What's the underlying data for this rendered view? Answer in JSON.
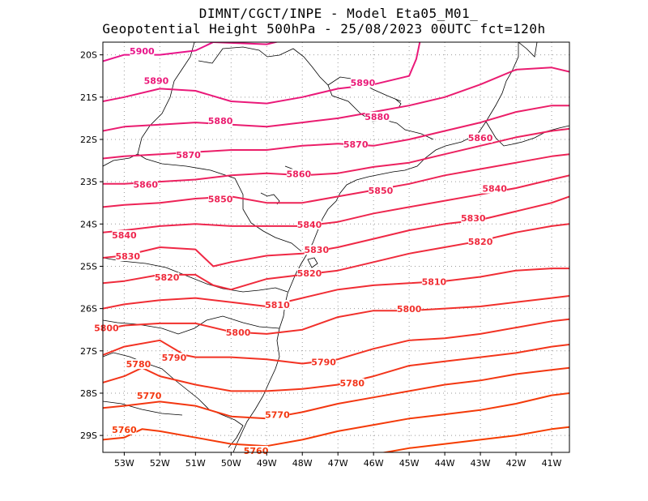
{
  "header": {
    "line1": "DIMNT/CGCT/INPE -  Model Eta05_M01_",
    "line2": "Geopotential Height 500hPa -  25/08/2023 00UTC fct=120h"
  },
  "map": {
    "lon_range": [
      -53.6,
      -40.5
    ],
    "lat_range": [
      -29.4,
      -19.7
    ],
    "lon_ticks": [
      {
        "value": -53,
        "label": "53W"
      },
      {
        "value": -52,
        "label": "52W"
      },
      {
        "value": -51,
        "label": "51W"
      },
      {
        "value": -50,
        "label": "50W"
      },
      {
        "value": -49,
        "label": "49W"
      },
      {
        "value": -48,
        "label": "48W"
      },
      {
        "value": -47,
        "label": "47W"
      },
      {
        "value": -46,
        "label": "46W"
      },
      {
        "value": -45,
        "label": "45W"
      },
      {
        "value": -44,
        "label": "44W"
      },
      {
        "value": -43,
        "label": "43W"
      },
      {
        "value": -42,
        "label": "42W"
      },
      {
        "value": -41,
        "label": "41W"
      }
    ],
    "lat_ticks": [
      {
        "value": -20,
        "label": "20S"
      },
      {
        "value": -21,
        "label": "21S"
      },
      {
        "value": -22,
        "label": "22S"
      },
      {
        "value": -23,
        "label": "23S"
      },
      {
        "value": -24,
        "label": "24S"
      },
      {
        "value": -25,
        "label": "25S"
      },
      {
        "value": -26,
        "label": "26S"
      },
      {
        "value": -27,
        "label": "27S"
      },
      {
        "value": -28,
        "label": "28S"
      },
      {
        "value": -29,
        "label": "29S"
      }
    ],
    "contours": [
      {
        "label": "5900",
        "color": "#e8148a",
        "points": [
          [
            -53.6,
            -20.15
          ],
          [
            -53,
            -20.0
          ],
          [
            -52,
            -20.0
          ],
          [
            -51,
            -19.9
          ],
          [
            -50.5,
            -19.7
          ]
        ],
        "labels": [
          [
            -52.5,
            -19.95
          ]
        ]
      },
      {
        "label": "5900",
        "color": "#e8148a",
        "points": [
          [
            -50.5,
            -19.7
          ],
          [
            -49,
            -19.75
          ],
          [
            -48.5,
            -19.65
          ]
        ],
        "labels": [
          [
            -48.3,
            -19.65
          ]
        ]
      },
      {
        "label": "5890",
        "color": "#e8148a",
        "points": [
          [
            -53.6,
            -21.1
          ],
          [
            -53,
            -21.0
          ],
          [
            -52,
            -20.8
          ],
          [
            -51,
            -20.85
          ],
          [
            -50,
            -21.1
          ],
          [
            -49,
            -21.15
          ],
          [
            -48,
            -21.0
          ],
          [
            -47,
            -20.8
          ],
          [
            -46,
            -20.7
          ],
          [
            -45,
            -20.5
          ],
          [
            -44.8,
            -20.1
          ],
          [
            -44.7,
            -19.7
          ]
        ],
        "labels": [
          [
            -52.1,
            -20.65
          ],
          [
            -46.3,
            -20.7
          ]
        ]
      },
      {
        "label": "5880",
        "color": "#e8148a",
        "points": [
          [
            -53.6,
            -21.8
          ],
          [
            -53,
            -21.7
          ],
          [
            -52,
            -21.65
          ],
          [
            -51,
            -21.6
          ],
          [
            -50,
            -21.65
          ],
          [
            -49,
            -21.7
          ],
          [
            -48,
            -21.6
          ],
          [
            -47,
            -21.5
          ],
          [
            -46,
            -21.35
          ],
          [
            -45,
            -21.2
          ],
          [
            -44,
            -21.0
          ],
          [
            -43,
            -20.7
          ],
          [
            -42,
            -20.35
          ],
          [
            -41,
            -20.3
          ],
          [
            -40.5,
            -20.4
          ]
        ],
        "labels": [
          [
            -50.3,
            -21.6
          ],
          [
            -45.9,
            -21.5
          ]
        ]
      },
      {
        "label": "5870",
        "color": "#e8148a",
        "points": [
          [
            -53.6,
            -22.45
          ],
          [
            -53,
            -22.4
          ],
          [
            -52,
            -22.35
          ],
          [
            -51,
            -22.3
          ],
          [
            -50,
            -22.25
          ],
          [
            -49,
            -22.25
          ],
          [
            -48,
            -22.15
          ],
          [
            -47,
            -22.1
          ],
          [
            -46,
            -22.15
          ],
          [
            -45,
            -22.0
          ],
          [
            -44,
            -21.8
          ],
          [
            -43,
            -21.6
          ],
          [
            -42,
            -21.35
          ],
          [
            -41,
            -21.2
          ],
          [
            -40.5,
            -21.2
          ]
        ],
        "labels": [
          [
            -51.2,
            -22.4
          ],
          [
            -46.5,
            -22.15
          ]
        ]
      },
      {
        "label": "5860",
        "color": "#e8148a",
        "points": [
          [
            -53.6,
            -23.05
          ],
          [
            -53,
            -23.05
          ],
          [
            -52,
            -23.0
          ],
          [
            -51,
            -22.95
          ],
          [
            -50,
            -22.85
          ],
          [
            -49,
            -22.8
          ],
          [
            -48,
            -22.85
          ],
          [
            -47,
            -22.8
          ],
          [
            -46,
            -22.65
          ],
          [
            -45,
            -22.55
          ],
          [
            -44,
            -22.35
          ],
          [
            -43,
            -22.15
          ],
          [
            -42,
            -21.95
          ],
          [
            -41,
            -21.8
          ],
          [
            -40.5,
            -21.75
          ]
        ],
        "labels": [
          [
            -52.4,
            -23.1
          ],
          [
            -48.1,
            -22.85
          ],
          [
            -43.0,
            -22.0
          ]
        ]
      },
      {
        "label": "5850",
        "color": "#e8148a",
        "points": [
          [
            -53.6,
            -23.6
          ],
          [
            -53,
            -23.55
          ],
          [
            -52,
            -23.5
          ],
          [
            -51,
            -23.4
          ],
          [
            -50,
            -23.35
          ],
          [
            -49,
            -23.5
          ],
          [
            -48,
            -23.5
          ],
          [
            -47,
            -23.35
          ],
          [
            -46,
            -23.2
          ],
          [
            -45,
            -23.05
          ],
          [
            -44,
            -22.85
          ],
          [
            -43,
            -22.7
          ],
          [
            -42,
            -22.55
          ],
          [
            -41,
            -22.4
          ],
          [
            -40.5,
            -22.35
          ]
        ],
        "labels": [
          [
            -50.3,
            -23.45
          ],
          [
            -45.8,
            -23.25
          ]
        ]
      },
      {
        "label": "5840",
        "color": "#e8148a",
        "points": [
          [
            -53.6,
            -24.2
          ],
          [
            -53,
            -24.15
          ],
          [
            -52,
            -24.05
          ],
          [
            -51,
            -24.0
          ],
          [
            -50,
            -24.05
          ],
          [
            -49,
            -24.05
          ],
          [
            -48,
            -24.05
          ],
          [
            -47,
            -23.95
          ],
          [
            -46,
            -23.75
          ],
          [
            -45,
            -23.6
          ],
          [
            -44,
            -23.45
          ],
          [
            -43,
            -23.3
          ],
          [
            -42,
            -23.15
          ],
          [
            -41,
            -22.95
          ],
          [
            -40.5,
            -22.85
          ]
        ],
        "labels": [
          [
            -53.0,
            -24.3
          ],
          [
            -47.8,
            -24.05
          ],
          [
            -42.6,
            -23.2
          ]
        ]
      },
      {
        "label": "5830",
        "color": "#e8148a",
        "points": [
          [
            -53.6,
            -24.8
          ],
          [
            -53,
            -24.75
          ],
          [
            -52,
            -24.55
          ],
          [
            -51,
            -24.6
          ],
          [
            -50.5,
            -25.0
          ],
          [
            -50,
            -24.9
          ],
          [
            -49,
            -24.75
          ],
          [
            -48,
            -24.7
          ],
          [
            -47,
            -24.55
          ],
          [
            -46,
            -24.35
          ],
          [
            -45,
            -24.15
          ],
          [
            -44,
            -24.0
          ],
          [
            -43,
            -23.9
          ],
          [
            -42,
            -23.7
          ],
          [
            -41,
            -23.5
          ],
          [
            -40.5,
            -23.35
          ]
        ],
        "labels": [
          [
            -52.9,
            -24.8
          ],
          [
            -47.6,
            -24.65
          ],
          [
            -43.2,
            -23.9
          ]
        ]
      },
      {
        "label": "5820",
        "color": "#e8148a",
        "points": [
          [
            -53.6,
            -25.4
          ],
          [
            -53,
            -25.35
          ],
          [
            -52,
            -25.2
          ],
          [
            -51,
            -25.2
          ],
          [
            -50.5,
            -25.45
          ],
          [
            -50,
            -25.55
          ],
          [
            -49,
            -25.3
          ],
          [
            -48,
            -25.2
          ],
          [
            -47,
            -25.1
          ],
          [
            -46,
            -24.9
          ],
          [
            -45,
            -24.7
          ],
          [
            -44,
            -24.55
          ],
          [
            -43,
            -24.4
          ],
          [
            -42,
            -24.2
          ],
          [
            -41,
            -24.05
          ],
          [
            -40.5,
            -24.0
          ]
        ],
        "labels": [
          [
            -51.8,
            -25.3
          ],
          [
            -47.8,
            -25.2
          ],
          [
            -43.0,
            -24.45
          ]
        ]
      },
      {
        "label": "5810",
        "color": "#e8148a",
        "points": [
          [
            -53.6,
            -26.0
          ],
          [
            -53,
            -25.9
          ],
          [
            -52,
            -25.8
          ],
          [
            -51,
            -25.75
          ],
          [
            -50,
            -25.85
          ],
          [
            -49,
            -25.95
          ],
          [
            -48,
            -25.75
          ],
          [
            -47,
            -25.55
          ],
          [
            -46,
            -25.45
          ],
          [
            -45,
            -25.4
          ],
          [
            -44,
            -25.35
          ],
          [
            -43,
            -25.25
          ],
          [
            -42,
            -25.1
          ],
          [
            -41,
            -25.05
          ],
          [
            -40.5,
            -25.05
          ]
        ],
        "labels": [
          [
            -48.7,
            -25.95
          ],
          [
            -44.3,
            -25.4
          ]
        ]
      },
      {
        "label": "5800",
        "color": "#e8148a",
        "points": [
          [
            -53.6,
            -26.5
          ],
          [
            -53,
            -26.4
          ],
          [
            -52,
            -26.35
          ],
          [
            -51,
            -26.35
          ],
          [
            -50,
            -26.55
          ],
          [
            -49,
            -26.6
          ],
          [
            -48,
            -26.5
          ],
          [
            -47,
            -26.2
          ],
          [
            -46,
            -26.05
          ],
          [
            -45,
            -26.05
          ],
          [
            -44,
            -26.0
          ],
          [
            -43,
            -25.95
          ],
          [
            -42,
            -25.85
          ],
          [
            -41,
            -25.75
          ],
          [
            -40.5,
            -25.7
          ]
        ],
        "labels": [
          [
            -53.5,
            -26.5
          ],
          [
            -49.8,
            -26.6
          ],
          [
            -45.0,
            -26.05
          ]
        ]
      },
      {
        "label": "5790",
        "color": "#e8148a",
        "points": [
          [
            -53.6,
            -27.1
          ],
          [
            -53,
            -26.9
          ],
          [
            -52,
            -26.75
          ],
          [
            -51.3,
            -27.1
          ],
          [
            -51,
            -27.15
          ],
          [
            -50,
            -27.15
          ],
          [
            -49,
            -27.2
          ],
          [
            -48,
            -27.3
          ],
          [
            -47,
            -27.2
          ],
          [
            -46,
            -26.95
          ],
          [
            -45,
            -26.75
          ],
          [
            -44,
            -26.7
          ],
          [
            -43,
            -26.6
          ],
          [
            -42,
            -26.45
          ],
          [
            -41,
            -26.3
          ],
          [
            -40.5,
            -26.25
          ]
        ],
        "labels": [
          [
            -51.6,
            -27.2
          ],
          [
            -47.4,
            -27.3
          ]
        ]
      },
      {
        "label": "5780",
        "color": "#e8148a",
        "points": [
          [
            -53.6,
            -27.75
          ],
          [
            -53,
            -27.6
          ],
          [
            -52.5,
            -27.4
          ],
          [
            -52,
            -27.6
          ],
          [
            -51,
            -27.8
          ],
          [
            -50,
            -27.95
          ],
          [
            -49,
            -27.95
          ],
          [
            -48,
            -27.9
          ],
          [
            -47,
            -27.8
          ],
          [
            -46,
            -27.6
          ],
          [
            -45,
            -27.35
          ],
          [
            -44,
            -27.25
          ],
          [
            -43,
            -27.15
          ],
          [
            -42,
            -27.05
          ],
          [
            -41,
            -26.9
          ],
          [
            -40.5,
            -26.85
          ]
        ],
        "labels": [
          [
            -52.6,
            -27.35
          ],
          [
            -46.6,
            -27.8
          ]
        ]
      },
      {
        "label": "5770",
        "color": "#e8148a",
        "points": [
          [
            -53.6,
            -28.35
          ],
          [
            -53,
            -28.3
          ],
          [
            -52,
            -28.2
          ],
          [
            -51,
            -28.3
          ],
          [
            -50,
            -28.55
          ],
          [
            -49,
            -28.6
          ],
          [
            -48,
            -28.45
          ],
          [
            -47,
            -28.25
          ],
          [
            -46,
            -28.1
          ],
          [
            -45,
            -27.95
          ],
          [
            -44,
            -27.8
          ],
          [
            -43,
            -27.7
          ],
          [
            -42,
            -27.55
          ],
          [
            -41,
            -27.45
          ],
          [
            -40.5,
            -27.4
          ]
        ],
        "labels": [
          [
            -52.3,
            -28.1
          ],
          [
            -48.7,
            -28.55
          ]
        ]
      },
      {
        "label": "5760",
        "color": "#e8148a",
        "points": [
          [
            -53.6,
            -29.1
          ],
          [
            -53,
            -29.05
          ],
          [
            -52.5,
            -28.85
          ],
          [
            -52,
            -28.9
          ],
          [
            -51,
            -29.05
          ],
          [
            -50,
            -29.2
          ],
          [
            -49,
            -29.25
          ],
          [
            -48,
            -29.1
          ],
          [
            -47,
            -28.9
          ],
          [
            -46,
            -28.75
          ],
          [
            -45,
            -28.6
          ],
          [
            -44,
            -28.5
          ],
          [
            -43,
            -28.4
          ],
          [
            -42,
            -28.25
          ],
          [
            -41,
            -28.05
          ],
          [
            -40.5,
            -28.0
          ]
        ],
        "labels": [
          [
            -53.0,
            -28.9
          ],
          [
            -49.3,
            -29.4
          ]
        ]
      },
      {
        "label": "",
        "color": "#e8148a",
        "points": [
          [
            -46.0,
            -29.45
          ],
          [
            -45,
            -29.3
          ],
          [
            -44,
            -29.2
          ],
          [
            -43,
            -29.1
          ],
          [
            -42,
            -29.0
          ],
          [
            -41,
            -28.85
          ],
          [
            -40.5,
            -28.8
          ]
        ],
        "labels": []
      }
    ]
  }
}
